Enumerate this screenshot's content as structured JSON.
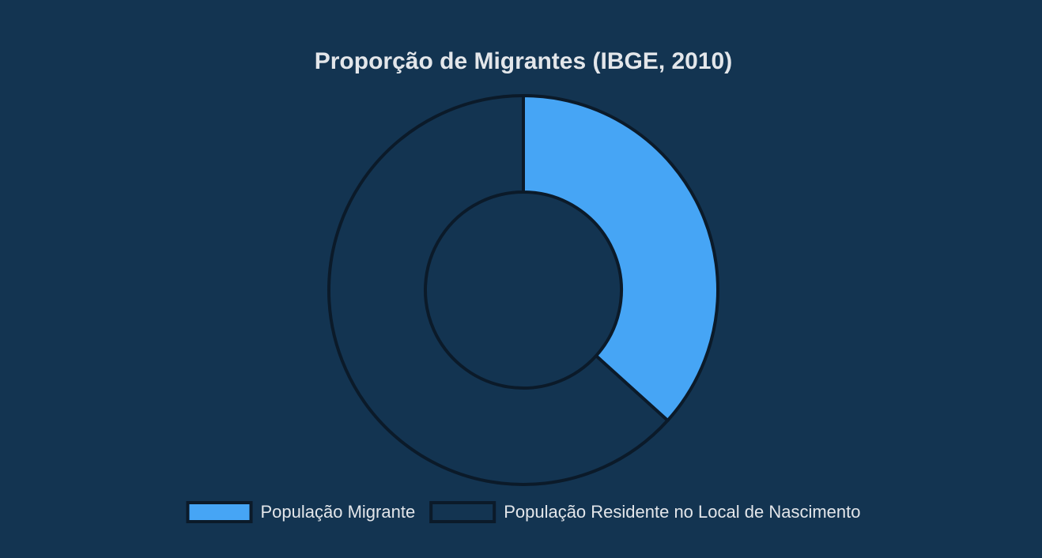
{
  "chart_data": {
    "type": "doughnut",
    "title": "Proporção de Migrantes (IBGE, 2010)",
    "categories": [
      "População Migrante",
      "População Residente no Local de Nascimento"
    ],
    "values": [
      36.7,
      63.3
    ],
    "colors": [
      "#46a5f5",
      "#133451"
    ],
    "legend": "bottom"
  }
}
